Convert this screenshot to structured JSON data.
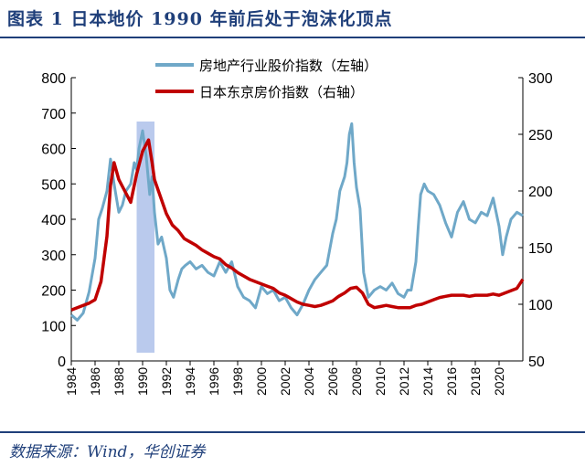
{
  "title": "图表 1 日本地价 1990 年前后处于泡沫化顶点",
  "source": "数据来源：Wind，华创证券",
  "chart_data": {
    "type": "line",
    "title": "图表 1 日本地价 1990 年前后处于泡沫化顶点",
    "xlabel": "",
    "ylabel": "",
    "x_ticks": [
      "1984",
      "1986",
      "1988",
      "1990",
      "1992",
      "1994",
      "1996",
      "1998",
      "2000",
      "2002",
      "2004",
      "2006",
      "2008",
      "2010",
      "2012",
      "2014",
      "2016",
      "2018",
      "2020"
    ],
    "xlim": [
      1984,
      2022
    ],
    "ylim_left": [
      0,
      800
    ],
    "yticks_left": [
      "0",
      "100",
      "200",
      "300",
      "400",
      "500",
      "600",
      "700",
      "800"
    ],
    "ylim_right": [
      50,
      300
    ],
    "yticks_right": [
      "50",
      "100",
      "150",
      "200",
      "250",
      "300"
    ],
    "legend": {
      "placement": "top-center"
    },
    "highlight_band": [
      1989.5,
      1991.0
    ],
    "colors": {
      "stock": "#6fa8c8",
      "house": "#c00000",
      "band": "#a9bde8",
      "axis": "#000000"
    },
    "series": [
      {
        "name": "房地产行业股价指数（左轴）",
        "axis": "left",
        "x": [
          1984.0,
          1984.5,
          1985.0,
          1985.5,
          1986.0,
          1986.3,
          1986.6,
          1987.0,
          1987.3,
          1987.6,
          1988.0,
          1988.3,
          1988.6,
          1989.0,
          1989.3,
          1989.5,
          1989.7,
          1990.0,
          1990.3,
          1990.6,
          1990.8,
          1991.0,
          1991.3,
          1991.6,
          1992.0,
          1992.3,
          1992.6,
          1993.0,
          1993.3,
          1993.6,
          1994.0,
          1994.5,
          1995.0,
          1995.5,
          1996.0,
          1996.5,
          1997.0,
          1997.5,
          1998.0,
          1998.5,
          1999.0,
          1999.5,
          2000.0,
          2000.5,
          2001.0,
          2001.5,
          2002.0,
          2002.5,
          2003.0,
          2003.5,
          2004.0,
          2004.5,
          2005.0,
          2005.5,
          2006.0,
          2006.3,
          2006.6,
          2007.0,
          2007.2,
          2007.4,
          2007.6,
          2007.8,
          2008.0,
          2008.3,
          2008.6,
          2009.0,
          2009.5,
          2010.0,
          2010.5,
          2011.0,
          2011.5,
          2012.0,
          2012.3,
          2012.6,
          2013.0,
          2013.2,
          2013.4,
          2013.7,
          2014.0,
          2014.5,
          2015.0,
          2015.5,
          2016.0,
          2016.5,
          2017.0,
          2017.5,
          2018.0,
          2018.5,
          2019.0,
          2019.5,
          2020.0,
          2020.3,
          2020.6,
          2021.0,
          2021.5,
          2022.0
        ],
        "values": [
          130,
          115,
          135,
          195,
          290,
          400,
          430,
          480,
          570,
          500,
          420,
          440,
          480,
          500,
          560,
          540,
          600,
          650,
          580,
          470,
          520,
          420,
          330,
          350,
          290,
          200,
          180,
          230,
          260,
          270,
          280,
          260,
          270,
          250,
          240,
          280,
          250,
          280,
          210,
          180,
          170,
          150,
          210,
          190,
          200,
          170,
          180,
          150,
          130,
          160,
          200,
          230,
          250,
          270,
          360,
          400,
          480,
          520,
          560,
          640,
          670,
          560,
          490,
          430,
          250,
          180,
          200,
          210,
          200,
          220,
          190,
          180,
          200,
          200,
          280,
          380,
          470,
          500,
          480,
          470,
          440,
          390,
          350,
          420,
          450,
          400,
          390,
          420,
          410,
          460,
          380,
          300,
          350,
          400,
          420,
          410
        ]
      },
      {
        "name": "日本东京房价指数（右轴）",
        "axis": "right",
        "x": [
          1984.0,
          1984.5,
          1985.0,
          1985.5,
          1986.0,
          1986.5,
          1987.0,
          1987.3,
          1987.6,
          1988.0,
          1988.5,
          1989.0,
          1989.5,
          1990.0,
          1990.5,
          1990.8,
          1991.0,
          1991.5,
          1992.0,
          1992.5,
          1993.0,
          1993.5,
          1994.0,
          1994.5,
          1995.0,
          1995.5,
          1996.0,
          1996.5,
          1997.0,
          1997.5,
          1998.0,
          1998.5,
          1999.0,
          1999.5,
          2000.0,
          2000.5,
          2001.0,
          2001.5,
          2002.0,
          2002.5,
          2003.0,
          2003.5,
          2004.0,
          2004.5,
          2005.0,
          2005.5,
          2006.0,
          2006.5,
          2007.0,
          2007.5,
          2008.0,
          2008.5,
          2009.0,
          2009.5,
          2010.0,
          2010.5,
          2011.0,
          2011.5,
          2012.0,
          2012.5,
          2013.0,
          2013.5,
          2014.0,
          2014.5,
          2015.0,
          2015.5,
          2016.0,
          2016.5,
          2017.0,
          2017.5,
          2018.0,
          2018.5,
          2019.0,
          2019.5,
          2020.0,
          2020.5,
          2021.0,
          2021.5,
          2022.0
        ],
        "values": [
          95,
          97,
          99,
          101,
          104,
          120,
          160,
          205,
          225,
          210,
          200,
          190,
          215,
          235,
          245,
          225,
          210,
          195,
          180,
          170,
          165,
          158,
          155,
          152,
          148,
          145,
          142,
          140,
          135,
          132,
          128,
          125,
          122,
          120,
          118,
          116,
          114,
          110,
          108,
          105,
          102,
          100,
          99,
          98,
          99,
          101,
          103,
          107,
          110,
          114,
          115,
          110,
          100,
          97,
          98,
          99,
          98,
          97,
          97,
          97,
          99,
          100,
          102,
          104,
          106,
          107,
          108,
          108,
          108,
          107,
          108,
          108,
          108,
          109,
          108,
          110,
          112,
          114,
          122
        ]
      }
    ]
  }
}
